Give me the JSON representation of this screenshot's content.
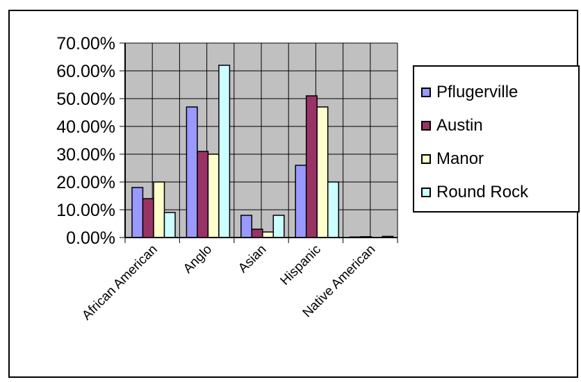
{
  "chart_data": {
    "type": "bar",
    "categories": [
      "African American",
      "Anglo",
      "Asian",
      "Hispanic",
      "Native American"
    ],
    "series": [
      {
        "name": "Pflugerville",
        "color": "#9999ff",
        "values": [
          0.18,
          0.47,
          0.08,
          0.26,
          0.002
        ]
      },
      {
        "name": "Austin",
        "color": "#993366",
        "values": [
          0.14,
          0.31,
          0.03,
          0.51,
          0.003
        ]
      },
      {
        "name": "Manor",
        "color": "#ffffcc",
        "values": [
          0.2,
          0.3,
          0.02,
          0.47,
          0.0
        ]
      },
      {
        "name": "Round Rock",
        "color": "#ccffff",
        "values": [
          0.09,
          0.62,
          0.08,
          0.2,
          0.004
        ]
      }
    ],
    "ylim": [
      0,
      0.7
    ],
    "yticks": [
      "0.00%",
      "10.00%",
      "20.00%",
      "30.00%",
      "40.00%",
      "50.00%",
      "60.00%",
      "70.00%"
    ],
    "grid": true,
    "plot_background": "#c0c0c0",
    "legend_position": "right"
  }
}
